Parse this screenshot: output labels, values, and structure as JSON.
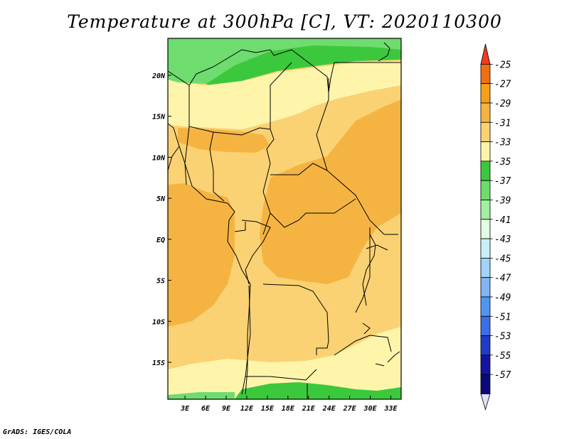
{
  "map": {
    "title": "Temperature at 300hPa [C], VT: 2020110300",
    "lat_labels": [
      "20N",
      "15N",
      "10N",
      "5N",
      "EQ",
      "5S",
      "10S",
      "15S"
    ],
    "lon_labels": [
      "3E",
      "6E",
      "9E",
      "12E",
      "15E",
      "18E",
      "21E",
      "24E",
      "27E",
      "30E",
      "33E"
    ],
    "lat_range": [
      -19.5,
      24.5
    ],
    "lon_range": [
      0.5,
      34.5
    ],
    "field": "temperature",
    "level": "300hPa",
    "units": "C",
    "valid_time": "2020110300"
  },
  "legend": {
    "labels": [
      "-25",
      "-27",
      "-29",
      "-31",
      "-33",
      "-35",
      "-37",
      "-39",
      "-41",
      "-43",
      "-45",
      "-47",
      "-49",
      "-51",
      "-53",
      "-55",
      "-57"
    ],
    "colors": [
      "#f03c1e",
      "#f06e14",
      "#f5a014",
      "#f5b441",
      "#fad273",
      "#fff5aa",
      "#3cc83c",
      "#6edc6e",
      "#a0f0a0",
      "#e1ffe1",
      "#c8f0fa",
      "#a0d2fa",
      "#82b4f0",
      "#5096f0",
      "#3c6ee6",
      "#1e3cc8",
      "#1414a0",
      "#0a0a78",
      "#e1e1ff"
    ]
  },
  "credit": "GrADS: IGES/COLA"
}
